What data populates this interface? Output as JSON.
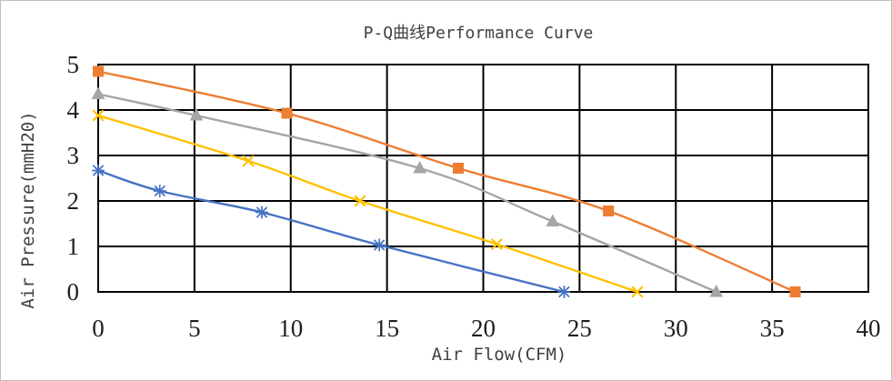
{
  "chart_data": {
    "type": "line",
    "title": "P-Q曲线Performance Curve",
    "xlabel": "Air Flow(CFM)",
    "ylabel": "Air Pressure(mmH20)",
    "xlim": [
      0,
      40
    ],
    "ylim": [
      0,
      5
    ],
    "xticks": [
      "0",
      "5",
      "10",
      "15",
      "20",
      "25",
      "30",
      "35",
      "40"
    ],
    "yticks": [
      "0",
      "1",
      "2",
      "3",
      "4",
      "5"
    ],
    "grid": true,
    "legend": "none",
    "series": [
      {
        "color": "#4472C4",
        "marker": "asterisk",
        "points": [
          {
            "x": 0,
            "y": 2.67
          },
          {
            "x": 3.2,
            "y": 2.22
          },
          {
            "x": 8.5,
            "y": 1.75
          },
          {
            "x": 14.6,
            "y": 1.03
          },
          {
            "x": 24.2,
            "y": 0.0
          }
        ]
      },
      {
        "color": "#FFC000",
        "marker": "x",
        "points": [
          {
            "x": 0,
            "y": 3.88
          },
          {
            "x": 7.8,
            "y": 2.88
          },
          {
            "x": 13.6,
            "y": 2.0
          },
          {
            "x": 20.7,
            "y": 1.05
          },
          {
            "x": 28.0,
            "y": 0.0
          }
        ]
      },
      {
        "color": "#A5A5A5",
        "marker": "triangle",
        "points": [
          {
            "x": 0,
            "y": 4.35
          },
          {
            "x": 5.1,
            "y": 3.88
          },
          {
            "x": 16.7,
            "y": 2.72
          },
          {
            "x": 23.6,
            "y": 1.55
          },
          {
            "x": 32.1,
            "y": 0.0
          }
        ]
      },
      {
        "color": "#ED7D31",
        "marker": "square",
        "points": [
          {
            "x": 0,
            "y": 4.85
          },
          {
            "x": 9.8,
            "y": 3.93
          },
          {
            "x": 18.7,
            "y": 2.72
          },
          {
            "x": 26.5,
            "y": 1.78
          },
          {
            "x": 36.2,
            "y": 0.0
          }
        ]
      }
    ]
  }
}
